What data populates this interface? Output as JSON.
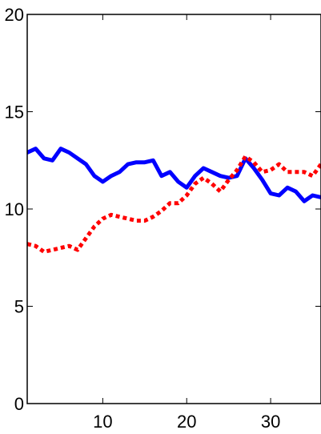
{
  "chart_data": {
    "type": "line",
    "title": "",
    "xlabel": "",
    "ylabel": "",
    "xlim": [
      1,
      36
    ],
    "ylim": [
      0,
      20
    ],
    "xticks": [
      10,
      20,
      30
    ],
    "yticks": [
      0,
      5,
      10,
      15,
      20
    ],
    "grid": false,
    "legend": "none",
    "series": [
      {
        "color": "#0000ff",
        "style": "solid",
        "x": [
          1,
          2,
          3,
          4,
          5,
          6,
          7,
          8,
          9,
          10,
          11,
          12,
          13,
          14,
          15,
          16,
          17,
          18,
          19,
          20,
          21,
          22,
          23,
          24,
          25,
          26,
          27,
          28,
          29,
          30,
          31,
          32,
          33,
          34,
          35,
          36
        ],
        "values": [
          12.9,
          13.1,
          12.6,
          12.5,
          13.1,
          12.9,
          12.6,
          12.3,
          11.7,
          11.4,
          11.7,
          11.9,
          12.3,
          12.4,
          12.4,
          12.5,
          11.7,
          11.9,
          11.4,
          11.1,
          11.7,
          12.1,
          11.9,
          11.7,
          11.6,
          11.7,
          12.6,
          12.1,
          11.5,
          10.8,
          10.7,
          11.1,
          10.9,
          10.4,
          10.7,
          10.6
        ]
      },
      {
        "color": "#ff0000",
        "style": "dotted",
        "x": [
          1,
          2,
          3,
          4,
          5,
          6,
          7,
          8,
          9,
          10,
          11,
          12,
          13,
          14,
          15,
          16,
          17,
          18,
          19,
          20,
          21,
          22,
          23,
          24,
          25,
          26,
          27,
          28,
          29,
          30,
          31,
          32,
          33,
          34,
          35,
          36
        ],
        "values": [
          8.2,
          8.1,
          7.8,
          7.9,
          8.0,
          8.1,
          7.9,
          8.5,
          9.1,
          9.5,
          9.7,
          9.6,
          9.5,
          9.4,
          9.4,
          9.6,
          9.9,
          10.3,
          10.3,
          10.7,
          11.3,
          11.6,
          11.3,
          10.9,
          11.5,
          12.0,
          12.7,
          12.4,
          11.9,
          12.0,
          12.3,
          11.9,
          11.9,
          11.9,
          11.7,
          12.3
        ]
      }
    ]
  }
}
